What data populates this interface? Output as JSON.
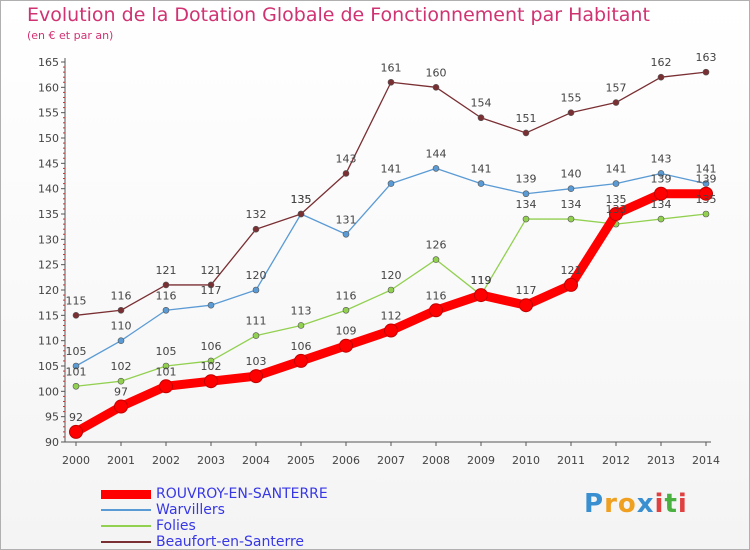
{
  "chart_data": {
    "type": "line",
    "title": "Evolution de la Dotation Globale de Fonctionnement par Habitant",
    "subtitle": "(en € et par an)",
    "xlabel": "",
    "ylabel": "",
    "x": [
      "2000",
      "2001",
      "2002",
      "2003",
      "2004",
      "2005",
      "2006",
      "2007",
      "2008",
      "2009",
      "2010",
      "2011",
      "2012",
      "2013",
      "2014"
    ],
    "ylim": [
      90,
      165
    ],
    "yticks": [
      90,
      95,
      100,
      105,
      110,
      115,
      120,
      125,
      130,
      135,
      140,
      145,
      150,
      155,
      160,
      165
    ],
    "grid": false,
    "legend": "bottom-left",
    "series": [
      {
        "name": "ROUVROY-EN-SANTERRE",
        "color": "#ff0000",
        "emphasis": "thick",
        "values": [
          92,
          97,
          101,
          102,
          103,
          106,
          109,
          112,
          116,
          119,
          117,
          121,
          135,
          139,
          139
        ]
      },
      {
        "name": "Warvillers",
        "color": "#5b9bd5",
        "emphasis": "thin",
        "values": [
          105,
          110,
          116,
          117,
          120,
          135,
          131,
          141,
          144,
          141,
          139,
          140,
          141,
          143,
          141
        ]
      },
      {
        "name": "Folies",
        "color": "#92d050",
        "emphasis": "thin",
        "values": [
          101,
          102,
          105,
          106,
          111,
          113,
          116,
          120,
          126,
          119,
          134,
          134,
          133,
          134,
          135
        ]
      },
      {
        "name": "Beaufort-en-Santerre",
        "color": "#7a2f33",
        "emphasis": "thin",
        "values": [
          115,
          116,
          121,
          121,
          132,
          135,
          143,
          161,
          160,
          154,
          151,
          155,
          157,
          162,
          163
        ]
      }
    ]
  },
  "brand": {
    "letters": [
      "P",
      "r",
      "o",
      "x",
      "i",
      "t",
      "i"
    ],
    "colors": [
      "#3a8fd0",
      "#f0a020",
      "#f0a020",
      "#3a8fd0",
      "#e04040",
      "#4ab040",
      "#e04040"
    ]
  }
}
